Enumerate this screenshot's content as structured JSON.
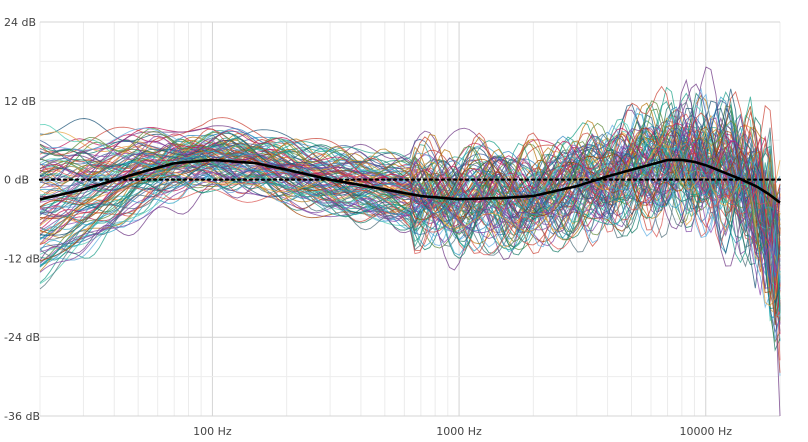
{
  "chart_data": {
    "type": "line",
    "title": "",
    "xlabel": "",
    "ylabel": "",
    "x_scale": "log",
    "xlim": [
      20,
      20000
    ],
    "ylim": [
      -36,
      24
    ],
    "grid": true,
    "legend": "none",
    "y_ticks": [
      {
        "value": 24,
        "label": "24 dB"
      },
      {
        "value": 12,
        "label": "12 dB"
      },
      {
        "value": 0,
        "label": "0 dB"
      },
      {
        "value": -12,
        "label": "-12 dB"
      },
      {
        "value": -24,
        "label": "-24 dB"
      },
      {
        "value": -36,
        "label": "-36 dB"
      }
    ],
    "x_ticks": [
      {
        "value": 100,
        "label": "100 Hz"
      },
      {
        "value": 1000,
        "label": "1000 Hz"
      },
      {
        "value": 10000,
        "label": "10000 Hz"
      }
    ],
    "series": [
      {
        "role": "average",
        "color": "#000000",
        "style": "solid",
        "x": [
          20,
          30,
          50,
          70,
          100,
          150,
          200,
          300,
          500,
          700,
          1000,
          1500,
          2000,
          3000,
          4000,
          5000,
          6000,
          7000,
          8000,
          9000,
          10000,
          12000,
          14000,
          16000,
          18000,
          20000
        ],
        "y": [
          -3,
          -1.5,
          1,
          2.5,
          3,
          2.5,
          1.5,
          0,
          -1.5,
          -2.5,
          -3,
          -2.8,
          -2.5,
          -1,
          0.5,
          1.5,
          2.3,
          3,
          3,
          2.7,
          2.2,
          1,
          0,
          -1,
          -2.2,
          -3.5
        ]
      },
      {
        "role": "target",
        "color": "#000000",
        "style": "dotted",
        "x": [
          20,
          20000
        ],
        "y": [
          0,
          0
        ]
      }
    ],
    "bundle": {
      "description": "dense bundle of individual frequency response curves",
      "count": 120,
      "palette": [
        "#1f9e89",
        "#3b5998",
        "#7a3fa0",
        "#d9534f",
        "#2aa3c7",
        "#e6a23c",
        "#5c8a3a",
        "#c2185b",
        "#4f6d7a",
        "#8e44ad",
        "#16a085",
        "#2e86c1",
        "#b9770e",
        "#6c3483",
        "#117864",
        "#cb4335",
        "#5dade2",
        "#48c9b0",
        "#a04000",
        "#1a5276"
      ]
    }
  }
}
